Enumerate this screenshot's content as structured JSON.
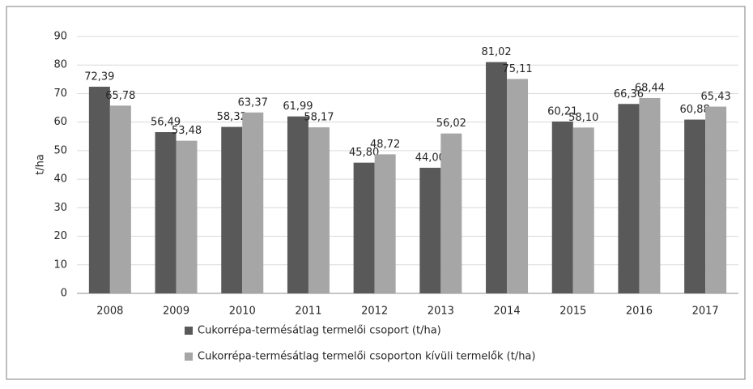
{
  "chart_data": {
    "type": "bar",
    "ylabel": "t/ha",
    "categories": [
      "2008",
      "2009",
      "2010",
      "2011",
      "2012",
      "2013",
      "2014",
      "2015",
      "2016",
      "2017"
    ],
    "series": [
      {
        "name": "Cukorrépa-termésátlag termelői csoport (t/ha)",
        "color": "#595959",
        "values": [
          72.39,
          56.49,
          58.32,
          61.99,
          45.8,
          44.0,
          81.02,
          60.21,
          66.36,
          60.88
        ],
        "value_labels": [
          "72,39",
          "56,49",
          "58,32",
          "61,99",
          "45,80",
          "44,00",
          "81,02",
          "60,21",
          "66,36",
          "60,88"
        ]
      },
      {
        "name": "Cukorrépa-termésátlag termelői csoporton kívüli termelők (t/ha)",
        "color": "#a6a6a6",
        "values": [
          65.78,
          53.48,
          63.37,
          58.17,
          48.72,
          56.02,
          75.11,
          58.1,
          68.44,
          65.43
        ],
        "value_labels": [
          "65,78",
          "53,48",
          "63,37",
          "58,17",
          "48,72",
          "56,02",
          "75,11",
          "58,10",
          "68,44",
          "65,43"
        ]
      }
    ],
    "ylim": [
      0,
      90
    ],
    "yticks": [
      0,
      10,
      20,
      30,
      40,
      50,
      60,
      70,
      80,
      90
    ],
    "grid": true,
    "legend": "bottom"
  }
}
